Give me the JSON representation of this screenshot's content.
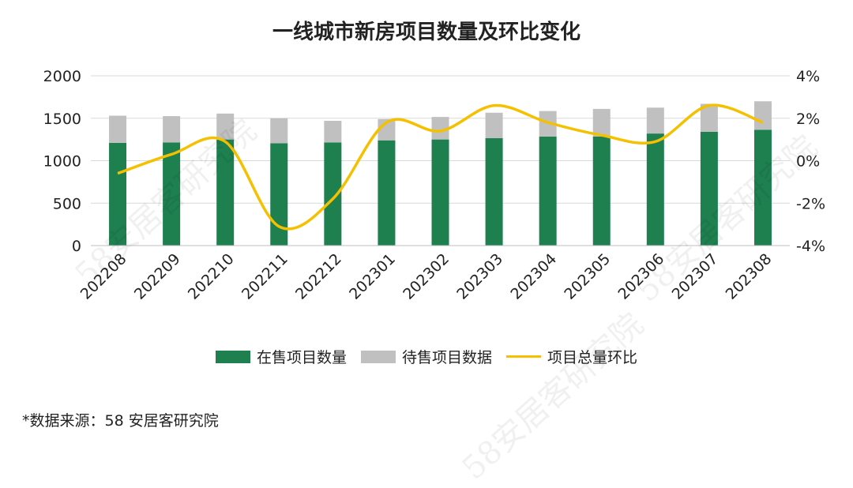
{
  "chart_data": {
    "type": "bar",
    "title": "一线城市新房项目数量及环比变化",
    "categories": [
      "202208",
      "202209",
      "202210",
      "202211",
      "202212",
      "202301",
      "202302",
      "202303",
      "202304",
      "202305",
      "202306",
      "202307",
      "202308"
    ],
    "series": [
      {
        "name": "在售项目数量",
        "type": "bar",
        "stacked": true,
        "axis": "left",
        "color": "#1e7f4f",
        "values": [
          1210,
          1215,
          1250,
          1205,
          1215,
          1240,
          1250,
          1265,
          1285,
          1285,
          1320,
          1340,
          1365
        ]
      },
      {
        "name": "待售项目数据",
        "type": "bar",
        "stacked": true,
        "axis": "left",
        "color": "#c0c0c0",
        "values": [
          320,
          310,
          305,
          295,
          255,
          250,
          265,
          300,
          300,
          325,
          305,
          330,
          335
        ]
      },
      {
        "name": "项目总量环比",
        "type": "line",
        "axis": "right",
        "unit": "%",
        "color": "#f5c000",
        "values": [
          -0.6,
          0.3,
          0.9,
          -3.1,
          -1.8,
          1.8,
          1.4,
          2.6,
          1.8,
          1.2,
          0.9,
          2.6,
          1.8
        ]
      }
    ],
    "y_left": {
      "min": 0,
      "max": 2000,
      "ticks": [
        0,
        500,
        1000,
        1500,
        2000
      ]
    },
    "y_right": {
      "min": -4,
      "max": 4,
      "ticks": [
        -4,
        -2,
        0,
        2,
        4
      ],
      "tick_labels": [
        "-4%",
        "-2%",
        "0%",
        "2%",
        "4%"
      ]
    },
    "grid": true,
    "legend_position": "bottom"
  },
  "source_note": "*数据来源：58 安居客研究院",
  "watermark_text": "58安居客研究院"
}
